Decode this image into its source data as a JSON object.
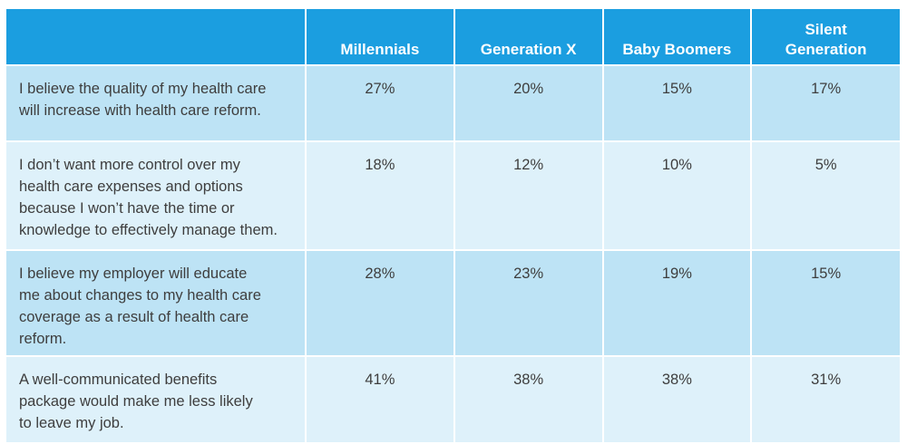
{
  "chart_data": {
    "type": "table",
    "columns": [
      "",
      "Millennials",
      "Generation X",
      "Baby Boomers",
      "Silent Generation"
    ],
    "column_lines": [
      [
        ""
      ],
      [
        "Millennials"
      ],
      [
        "Generation X"
      ],
      [
        "Baby Boomers"
      ],
      [
        "Silent",
        "Generation"
      ]
    ],
    "rows": [
      {
        "statement_lines": [
          "I believe the quality of my health care",
          "will increase with health care reform."
        ],
        "values": [
          "27%",
          "20%",
          "15%",
          "17%"
        ]
      },
      {
        "statement_lines": [
          "I don’t want more control over my",
          "health care expenses and options",
          "because I won’t have the time or",
          "knowledge to effectively manage them."
        ],
        "values": [
          "18%",
          "12%",
          "10%",
          "5%"
        ]
      },
      {
        "statement_lines": [
          "I believe my employer will educate",
          "me about changes to my health care",
          "coverage as a result of health care",
          "reform."
        ],
        "values": [
          "28%",
          "23%",
          "19%",
          "15%"
        ]
      },
      {
        "statement_lines": [
          "A well-communicated benefits",
          "package would make me less likely",
          "to leave my job."
        ],
        "values": [
          "41%",
          "38%",
          "38%",
          "31%"
        ]
      }
    ],
    "colors": {
      "header": "#1b9ee0",
      "row_dark": "#bde3f5",
      "row_light": "#def1fa",
      "text": "#3e3e3e"
    }
  }
}
